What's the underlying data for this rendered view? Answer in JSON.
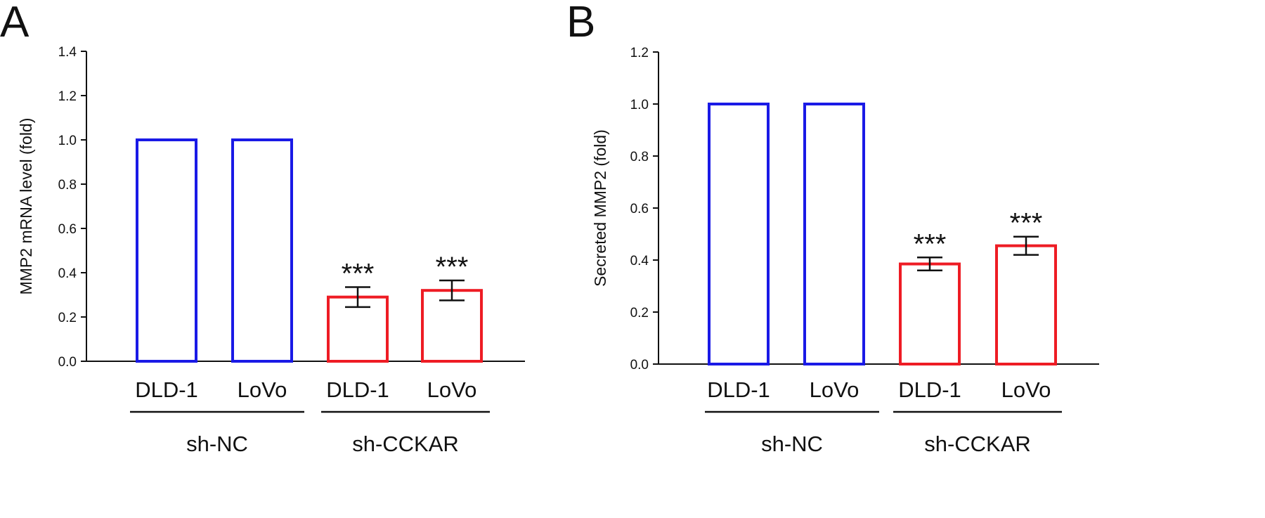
{
  "chart_data": [
    {
      "type": "bar",
      "panel_label": "A",
      "title": "",
      "xlabel": "",
      "ylabel": "MMP2 mRNA level (fold)",
      "ylim": [
        0,
        1.4
      ],
      "yticks": [
        "0.0",
        "0.2",
        "0.4",
        "0.6",
        "0.8",
        "1.0",
        "1.2",
        "1.4"
      ],
      "grid": false,
      "categories": [
        "DLD-1",
        "LoVo",
        "DLD-1",
        "LoVo"
      ],
      "values": [
        1.0,
        1.0,
        0.29,
        0.32
      ],
      "errors": [
        0,
        0,
        0.045,
        0.045
      ],
      "significance": [
        "",
        "",
        "***",
        "***"
      ],
      "groups": [
        {
          "label": "sh-NC",
          "members": [
            0,
            1
          ]
        },
        {
          "label": "sh-CCKAR",
          "members": [
            2,
            3
          ]
        }
      ],
      "bar_colors": [
        "#1a1ae6",
        "#1a1ae6",
        "#ee1c24",
        "#ee1c24"
      ]
    },
    {
      "type": "bar",
      "panel_label": "B",
      "title": "",
      "xlabel": "",
      "ylabel": "Secreted MMP2 (fold)",
      "ylim": [
        0,
        1.2
      ],
      "yticks": [
        "0.0",
        "0.2",
        "0.4",
        "0.6",
        "0.8",
        "1.0",
        "1.2"
      ],
      "grid": false,
      "categories": [
        "DLD-1",
        "LoVo",
        "DLD-1",
        "LoVo"
      ],
      "values": [
        1.0,
        1.0,
        0.385,
        0.455
      ],
      "errors": [
        0,
        0,
        0.025,
        0.035
      ],
      "significance": [
        "",
        "",
        "***",
        "***"
      ],
      "groups": [
        {
          "label": "sh-NC",
          "members": [
            0,
            1
          ]
        },
        {
          "label": "sh-CCKAR",
          "members": [
            2,
            3
          ]
        }
      ],
      "bar_colors": [
        "#1a1ae6",
        "#1a1ae6",
        "#ee1c24",
        "#ee1c24"
      ]
    }
  ]
}
